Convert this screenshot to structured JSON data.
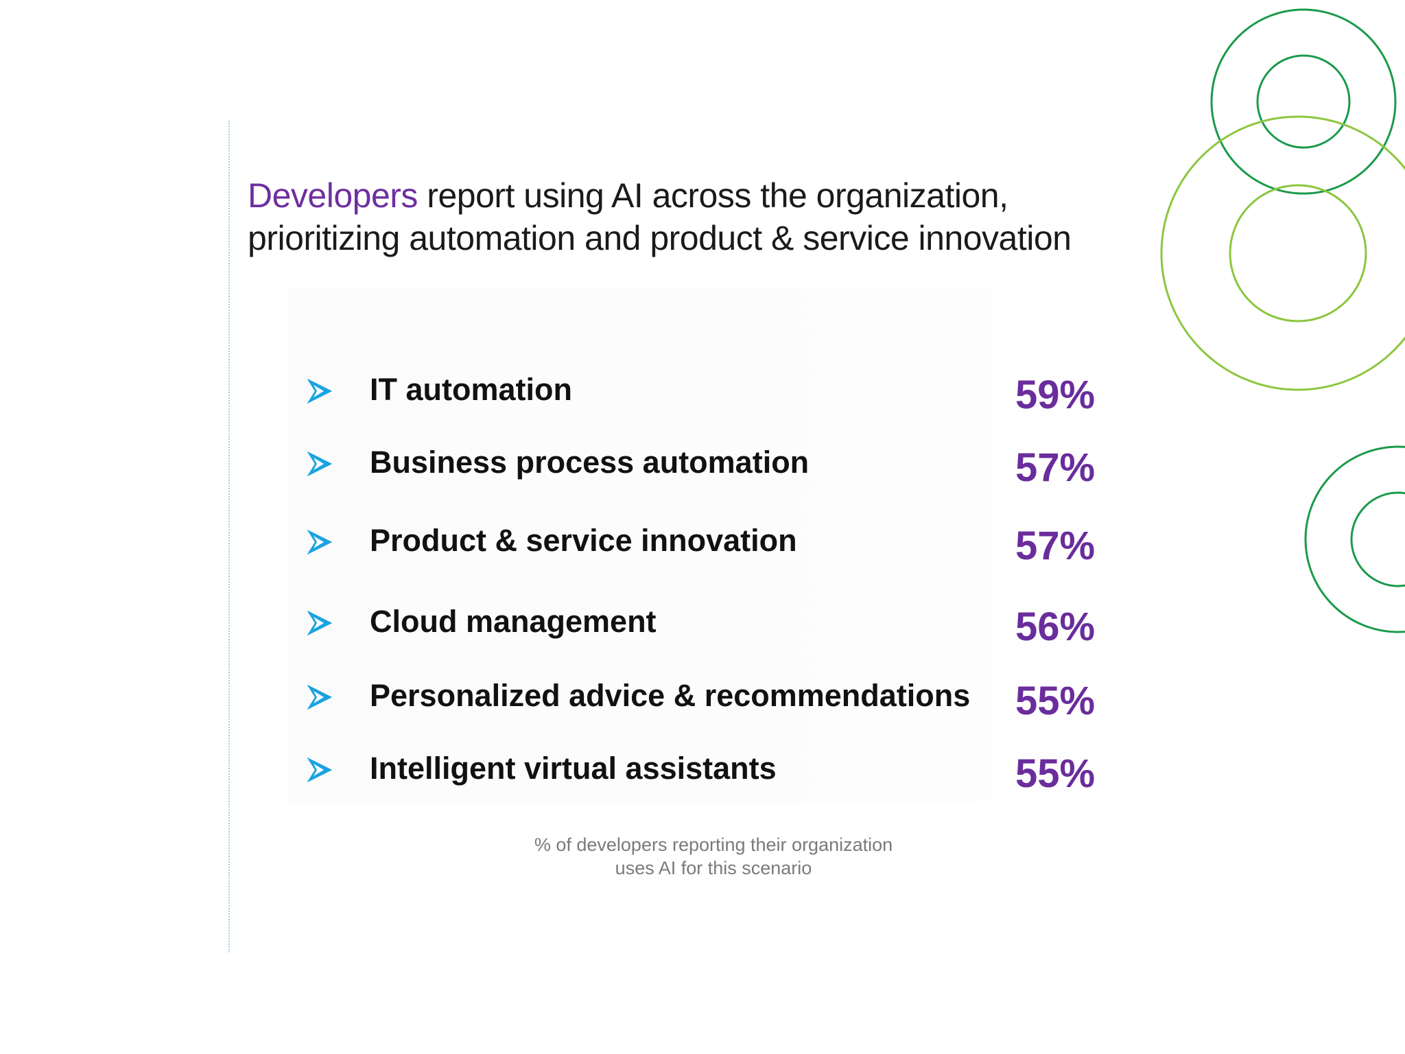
{
  "heading": {
    "accent": "Developers",
    "line1_rest": " report using AI across the organization,",
    "line2": "prioritizing automation and product & service innovation"
  },
  "items": [
    {
      "label": "IT automation",
      "value": "59%"
    },
    {
      "label": "Business process automation",
      "value": "57%"
    },
    {
      "label": "Product & service innovation",
      "value": "57%"
    },
    {
      "label": "Cloud management",
      "value": "56%"
    },
    {
      "label": "Personalized advice & recommendations",
      "value": "55%"
    },
    {
      "label": "Intelligent virtual assistants",
      "value": "55%"
    }
  ],
  "footnote": {
    "line1": "% of developers reporting their organization",
    "line2": "uses AI for this scenario"
  },
  "colors": {
    "accent_purple": "#6e2fa0",
    "value_purple": "#6a2d9c",
    "arrow_blue": "#1aa3e0",
    "circle_dark_green": "#1a9a4b",
    "circle_light_green": "#8cc63f"
  },
  "icons": {
    "bullet": "arrowhead-bullet-icon",
    "decoration": "concentric-circles-graphic"
  }
}
